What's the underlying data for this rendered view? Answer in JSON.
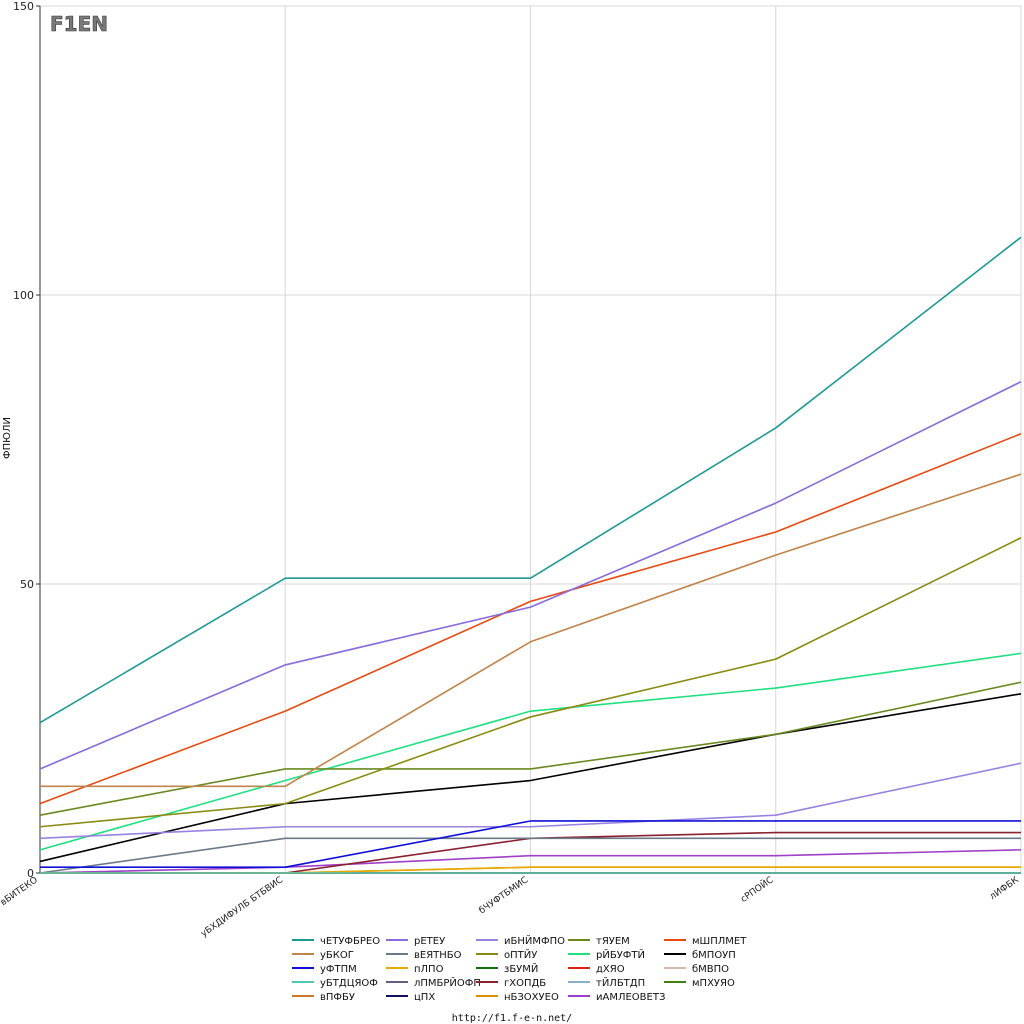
{
  "logo": {
    "text": "F1EN"
  },
  "footer": {
    "url": "http://f1.f-e-n.net/"
  },
  "chart_data": {
    "type": "line",
    "ylabel": "ФПЮЛИ",
    "xlabel": "",
    "ylim": [
      0,
      150
    ],
    "yticks": [
      0,
      50,
      100,
      150
    ],
    "grid": true,
    "legend_position": "bottom",
    "categories": [
      "вБИТЕКО",
      "уБХДИФУЛБ БТБВИС",
      "бЧУФТБМИС",
      "сРПОЙС",
      "лИФБК"
    ],
    "series": [
      {
        "name": "чЕТУФБРЕО",
        "color": "#1e9a94",
        "values": [
          26,
          51,
          51,
          77,
          110
        ]
      },
      {
        "name": "уБКОГ",
        "color": "#c0844a",
        "values": [
          15,
          15,
          40,
          55,
          69
        ]
      },
      {
        "name": "уФТПМ",
        "color": "#1010d8",
        "values": [
          1,
          1,
          9,
          9,
          9
        ]
      },
      {
        "name": "уБТДЦЯОФ",
        "color": "#50c8b8",
        "values": [
          0,
          0,
          0,
          0,
          0
        ]
      },
      {
        "name": "вПФБУ",
        "color": "#c87828",
        "values": [
          0,
          0,
          0,
          0,
          0
        ]
      },
      {
        "name": "рЕТЕУ",
        "color": "#8a6adc",
        "values": [
          18,
          36,
          46,
          64,
          85
        ]
      },
      {
        "name": "вЕЯТНБО",
        "color": "#6a7a88",
        "values": [
          0,
          6,
          6,
          6,
          6
        ]
      },
      {
        "name": "пЛПО",
        "color": "#e8a800",
        "values": [
          0,
          0,
          1,
          1,
          1
        ]
      },
      {
        "name": "лПМБРЙОФП",
        "color": "#606080",
        "values": [
          0,
          0,
          0,
          0,
          0
        ]
      },
      {
        "name": "цПХ",
        "color": "#101060",
        "values": [
          0,
          0,
          0,
          0,
          0
        ]
      },
      {
        "name": "иБНЙМФПО",
        "color": "#9a82e0",
        "values": [
          6,
          8,
          8,
          10,
          19
        ]
      },
      {
        "name": "оПТЙУ",
        "color": "#8a8a10",
        "values": [
          8,
          12,
          27,
          37,
          58
        ]
      },
      {
        "name": "зБУМЙ",
        "color": "#107010",
        "values": [
          0,
          0,
          0,
          0,
          0
        ]
      },
      {
        "name": "гХОПДБ",
        "color": "#8a2030",
        "values": [
          0,
          0,
          6,
          7,
          7
        ]
      },
      {
        "name": "нБЗОХУЕО",
        "color": "#d89000",
        "values": [
          0,
          0,
          1,
          1,
          1
        ]
      },
      {
        "name": "тЯУЕМ",
        "color": "#6a8a20",
        "values": [
          10,
          18,
          18,
          24,
          33
        ]
      },
      {
        "name": "рЙБУФТЙ",
        "color": "#20e080",
        "values": [
          4,
          16,
          28,
          32,
          38
        ]
      },
      {
        "name": "дХЯО",
        "color": "#e02010",
        "values": [
          0,
          0,
          0,
          0,
          0
        ]
      },
      {
        "name": "тЙЛБТДП",
        "color": "#88b0c8",
        "values": [
          0,
          0,
          0,
          0,
          0
        ]
      },
      {
        "name": "иАМЛЕОВЕТЗ",
        "color": "#a040c8",
        "values": [
          0,
          1,
          3,
          3,
          4
        ]
      },
      {
        "name": "мШПЛМЕТ",
        "color": "#e84a10",
        "values": [
          12,
          28,
          47,
          59,
          76
        ]
      },
      {
        "name": "бМПОУП",
        "color": "#000000",
        "values": [
          2,
          12,
          16,
          24,
          31
        ]
      },
      {
        "name": "бМВПО",
        "color": "#d8b8a8",
        "values": [
          0,
          0,
          0,
          0,
          0
        ]
      },
      {
        "name": "мПХУЯО",
        "color": "#408010",
        "values": [
          0,
          0,
          0,
          0,
          0
        ]
      }
    ]
  }
}
